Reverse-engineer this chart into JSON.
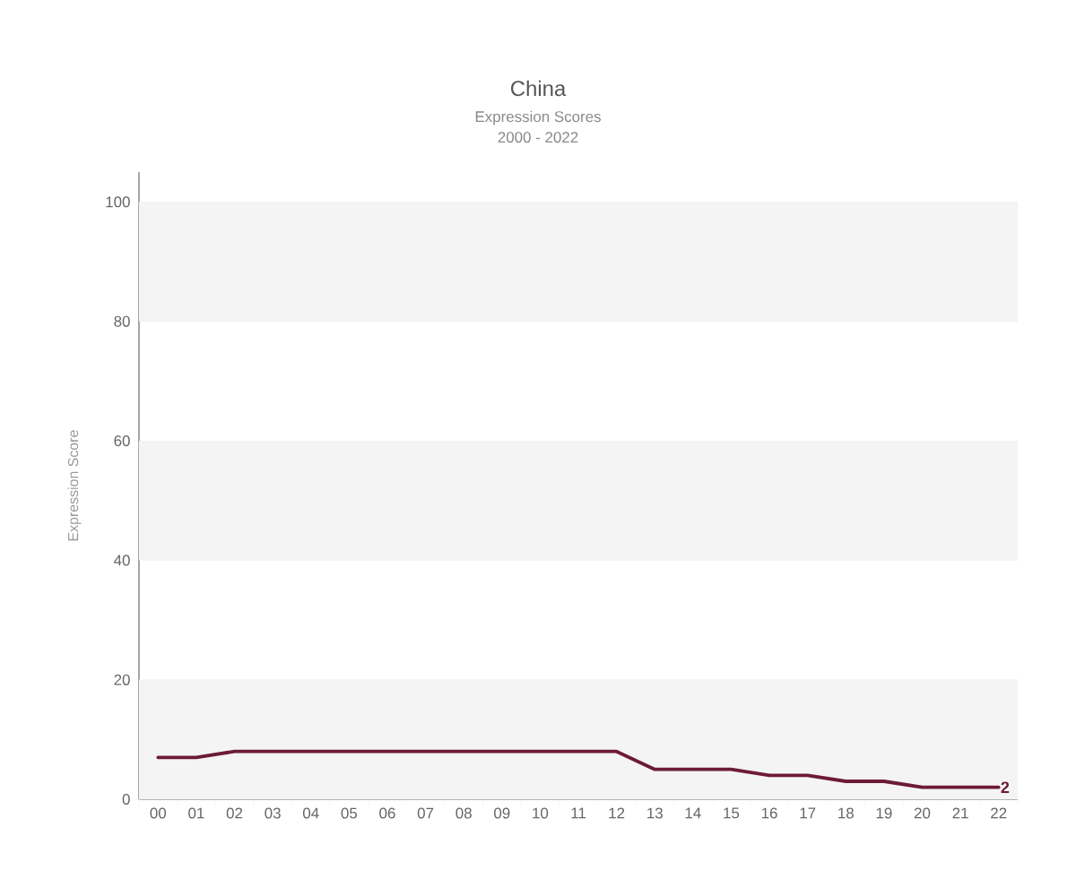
{
  "chart_data": {
    "type": "line",
    "title": "China",
    "subtitle": "Expression Scores",
    "annotations": [
      "2000 - 2022"
    ],
    "ylabel": "Expression Score",
    "categories": [
      "00",
      "01",
      "02",
      "03",
      "04",
      "05",
      "06",
      "07",
      "08",
      "09",
      "10",
      "11",
      "12",
      "13",
      "14",
      "15",
      "16",
      "17",
      "18",
      "19",
      "20",
      "21",
      "22"
    ],
    "values": [
      7,
      7,
      8,
      8,
      8,
      8,
      8,
      8,
      8,
      8,
      8,
      8,
      8,
      5,
      5,
      5,
      4,
      4,
      3,
      3,
      2,
      2,
      2
    ],
    "value_labels": [
      null,
      null,
      null,
      null,
      null,
      null,
      null,
      null,
      null,
      null,
      null,
      null,
      null,
      null,
      null,
      null,
      null,
      null,
      null,
      null,
      null,
      null,
      "2"
    ],
    "color": "#6d1a36",
    "marker": "none",
    "line_style": "solid",
    "ylim": [
      0,
      105
    ],
    "yticks": [
      0,
      20,
      40,
      60,
      80,
      100
    ],
    "grid": "y",
    "bands": [
      {
        "axis": "y",
        "from": 0,
        "to": 20,
        "color": "#f4f4f4"
      },
      {
        "axis": "y",
        "from": 40,
        "to": 60,
        "color": "#f4f4f4"
      },
      {
        "axis": "y",
        "from": 80,
        "to": 100,
        "color": "#f4f4f4"
      }
    ]
  }
}
